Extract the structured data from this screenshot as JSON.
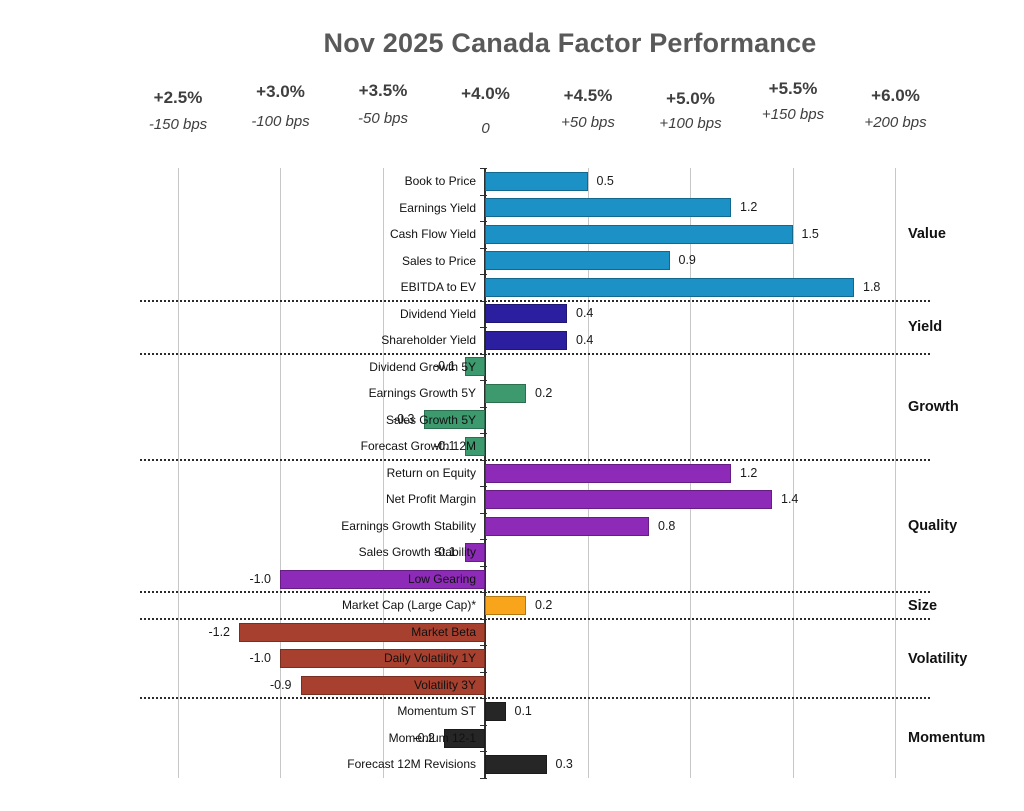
{
  "title": "Nov 2025 Canada Factor Performance",
  "chart_data": {
    "type": "bar",
    "orientation": "horizontal",
    "title": "Nov 2025 Canada Factor Performance",
    "x_axis": {
      "percent_ticks": [
        "+2.5%",
        "+3.0%",
        "+3.5%",
        "+4.0%",
        "+4.5%",
        "+5.0%",
        "+5.5%",
        "+6.0%"
      ],
      "bps_ticks": [
        "-150 bps",
        "-100 bps",
        "-50 bps",
        "0",
        "+50 bps",
        "+100 bps",
        "+150 bps",
        "+200 bps"
      ],
      "range_units": [
        -1.5,
        2.0
      ],
      "gridlines": true,
      "zero_line": true
    },
    "value_unit": "100 bps",
    "colors": {
      "Value": "#1b91c6",
      "Yield": "#2b1fa0",
      "Growth": "#3c9a6e",
      "Quality": "#8e2ab8",
      "Size": "#f9a51c",
      "Volatility": "#a7402e",
      "Momentum": "#262626"
    },
    "groups": [
      {
        "name": "Value",
        "factors": [
          {
            "label": "Book to Price",
            "value": 0.5
          },
          {
            "label": "Earnings Yield",
            "value": 1.2
          },
          {
            "label": "Cash Flow Yield",
            "value": 1.5
          },
          {
            "label": "Sales to Price",
            "value": 0.9
          },
          {
            "label": "EBITDA to EV",
            "value": 1.8
          }
        ]
      },
      {
        "name": "Yield",
        "factors": [
          {
            "label": "Dividend Yield",
            "value": 0.4
          },
          {
            "label": "Shareholder Yield",
            "value": 0.4
          }
        ]
      },
      {
        "name": "Growth",
        "factors": [
          {
            "label": "Dividend Growth 5Y",
            "value": -0.1
          },
          {
            "label": "Earnings Growth 5Y",
            "value": 0.2
          },
          {
            "label": "Sales Growth 5Y",
            "value": -0.3
          },
          {
            "label": "Forecast Growth 12M",
            "value": -0.1
          }
        ]
      },
      {
        "name": "Quality",
        "factors": [
          {
            "label": "Return on Equity",
            "value": 1.2
          },
          {
            "label": "Net Profit Margin",
            "value": 1.4
          },
          {
            "label": "Earnings Growth Stability",
            "value": 0.8
          },
          {
            "label": "Sales Growth Stability",
            "value": -0.1
          },
          {
            "label": "Low Gearing",
            "value": -1.0
          }
        ]
      },
      {
        "name": "Size",
        "factors": [
          {
            "label": "Market Cap (Large Cap)*",
            "value": 0.2
          }
        ]
      },
      {
        "name": "Volatility",
        "factors": [
          {
            "label": "Market Beta",
            "value": -1.2
          },
          {
            "label": "Daily Volatility 1Y",
            "value": -1.0
          },
          {
            "label": "Volatility 3Y",
            "value": -0.9
          }
        ]
      },
      {
        "name": "Momentum",
        "factors": [
          {
            "label": "Momentum ST",
            "value": 0.1
          },
          {
            "label": "Momentum 12-1",
            "value": -0.2
          },
          {
            "label": "Forecast 12M Revisions",
            "value": 0.3
          }
        ]
      }
    ]
  }
}
